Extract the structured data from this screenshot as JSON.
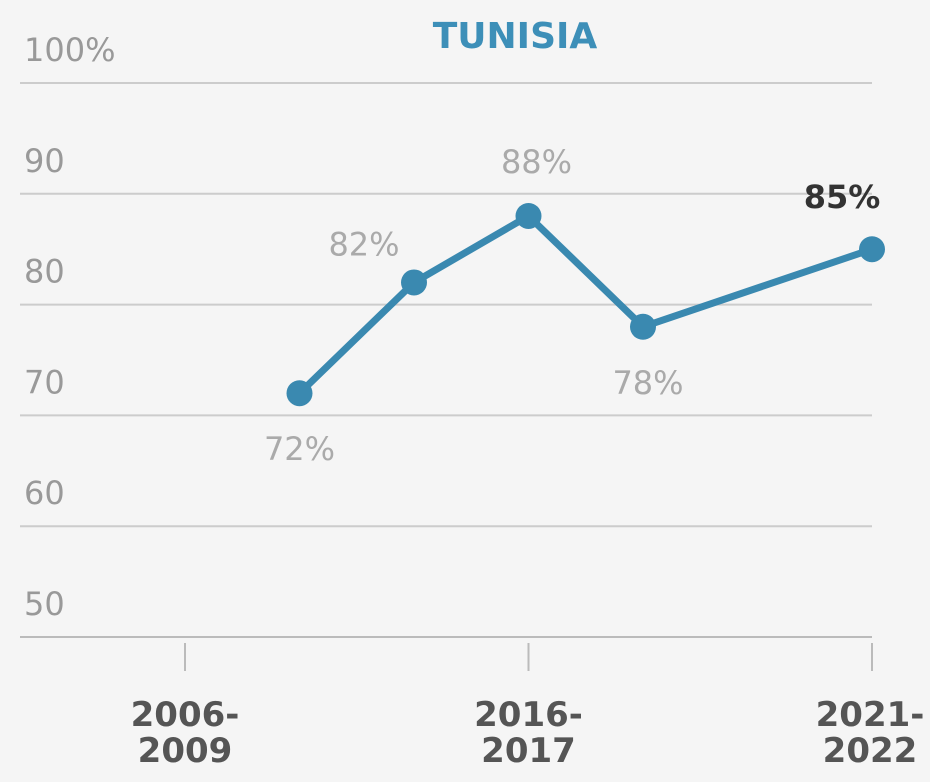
{
  "chart_data": {
    "type": "line",
    "title": "TUNISIA",
    "x": [
      1,
      2,
      3,
      4,
      6
    ],
    "series": [
      {
        "name": "Tunisia",
        "color": "#3a89b0",
        "values": [
          72,
          82,
          88,
          78,
          85
        ],
        "value_labels": [
          "72%",
          "82%",
          "88%",
          "78%",
          "85%"
        ]
      }
    ],
    "xlim": [
      0,
      6
    ],
    "xticks": [
      {
        "value": 0,
        "label": "2006-\n2009"
      },
      {
        "value": 3,
        "label": "2016-\n2017"
      },
      {
        "value": 6,
        "label": "2021-\n2022"
      }
    ],
    "ylim": [
      50,
      100
    ],
    "yticks": [
      50,
      60,
      70,
      80,
      90,
      {
        "value": 100,
        "label": "100%"
      }
    ],
    "grid": true
  }
}
